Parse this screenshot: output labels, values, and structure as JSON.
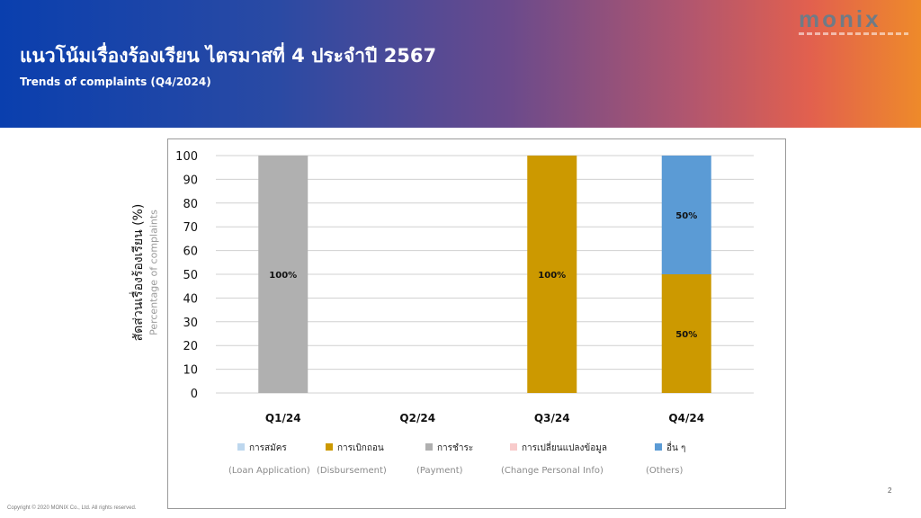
{
  "header": {
    "title": "แนวโน้มเรื่องร้องเรียน ไตรมาสที่ 4 ประจำปี 2567",
    "subtitle": "Trends of complaints (Q4/2024)"
  },
  "logo": {
    "text": "monix",
    "icon": "monix-logo"
  },
  "chart_data": {
    "type": "bar",
    "stacked": true,
    "categories": [
      "Q1/24",
      "Q2/24",
      "Q3/24",
      "Q4/24"
    ],
    "ylabel": "สัดส่วนเรื่องร้องเรียน (%)",
    "ylabel_en": "Percentage of complaints",
    "ylim": [
      0,
      100
    ],
    "yticks": [
      0,
      10,
      20,
      30,
      40,
      50,
      60,
      70,
      80,
      90,
      100
    ],
    "grid": true,
    "legend_position": "bottom",
    "series": [
      {
        "name": "การสมัคร",
        "name_en": "(Loan Application)",
        "color": "#bdd7ee",
        "values": [
          0,
          0,
          0,
          0
        ],
        "labels": [
          "",
          "",
          "",
          ""
        ]
      },
      {
        "name": "การเบิกถอน",
        "name_en": "(Disbursement)",
        "color": "#cc9900",
        "values": [
          0,
          0,
          100,
          50
        ],
        "labels": [
          "",
          "",
          "100%",
          "50%"
        ]
      },
      {
        "name": "การชำระ",
        "name_en": "(Payment)",
        "color": "#b0b0b0",
        "values": [
          100,
          0,
          0,
          0
        ],
        "labels": [
          "100%",
          "",
          "",
          ""
        ]
      },
      {
        "name": "การเปลี่ยนแปลงข้อมูล",
        "name_en": "(Change Personal Info)",
        "color": "#f8cbcb",
        "values": [
          0,
          0,
          0,
          0
        ],
        "labels": [
          "",
          "",
          "",
          ""
        ]
      },
      {
        "name": "อื่น ๆ",
        "name_en": "(Others)",
        "color": "#5b9bd5",
        "values": [
          0,
          0,
          0,
          50
        ],
        "labels": [
          "",
          "",
          "",
          "50%"
        ]
      }
    ]
  },
  "footer": {
    "copyright": "Copyright © 2020 MONIX Co., Ltd. All rights reserved.",
    "page_number": "2"
  }
}
